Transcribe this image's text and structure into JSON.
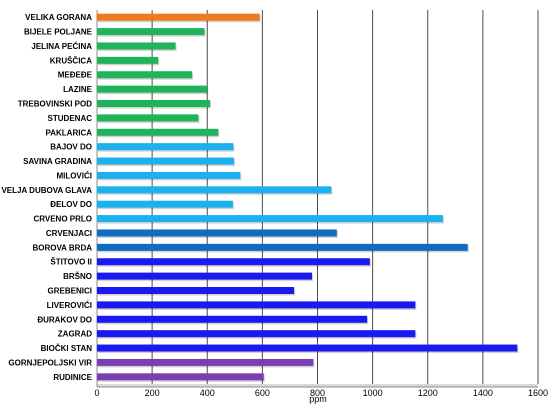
{
  "chart_data": {
    "type": "bar",
    "orientation": "horizontal",
    "categories": [
      "VELIKA GORANA",
      "BIJELE POLJANE",
      "JELINA PEĆINA",
      "KRUŠČICA",
      "MEĐEĐE",
      "LAZINE",
      "TREBOVINSKI POD",
      "STUDENAC",
      "PAKLARICA",
      "BAJOV DO",
      "SAVINA GRADINA",
      "MILOVIĆI",
      "VELJA DUBOVA GLAVA",
      "ĐELOV DO",
      "CRVENO PRLO",
      "CRVENJACI",
      "BOROVA BRDA",
      "ŠTITOVO II",
      "BRŠNO",
      "GREBENICI",
      "LIVEROVIĆI",
      "ĐURAKOV DO",
      "ZAGRAD",
      "BIOČKI STAN",
      "GORNJEPOLJSKI VIR",
      "RUDINICE"
    ],
    "values": [
      590,
      390,
      285,
      222,
      345,
      400,
      410,
      368,
      440,
      495,
      497,
      520,
      850,
      493,
      1255,
      870,
      1345,
      990,
      780,
      715,
      1155,
      980,
      1155,
      1525,
      785,
      605
    ],
    "colors": [
      "#F07A1E",
      "#1FB45A",
      "#1FB45A",
      "#1FB45A",
      "#1FB45A",
      "#1FB45A",
      "#1FB45A",
      "#1FB45A",
      "#1FB45A",
      "#1BB0EE",
      "#1BB0EE",
      "#1BB0EE",
      "#1BB0EE",
      "#1BB0EE",
      "#1BB0EE",
      "#0F6CC0",
      "#0F6CC0",
      "#1A1AF0",
      "#1A1AF0",
      "#1A1AF0",
      "#1A1AF0",
      "#1A1AF0",
      "#1A1AF0",
      "#1A1AF0",
      "#7A3FB0",
      "#7A3FB0"
    ],
    "xlabel": "ppm",
    "xlim": [
      0,
      1600
    ],
    "xticks": [
      "0",
      "200",
      "400",
      "600",
      "800",
      "1000",
      "1200",
      "1400",
      "1600"
    ],
    "grid": true
  }
}
